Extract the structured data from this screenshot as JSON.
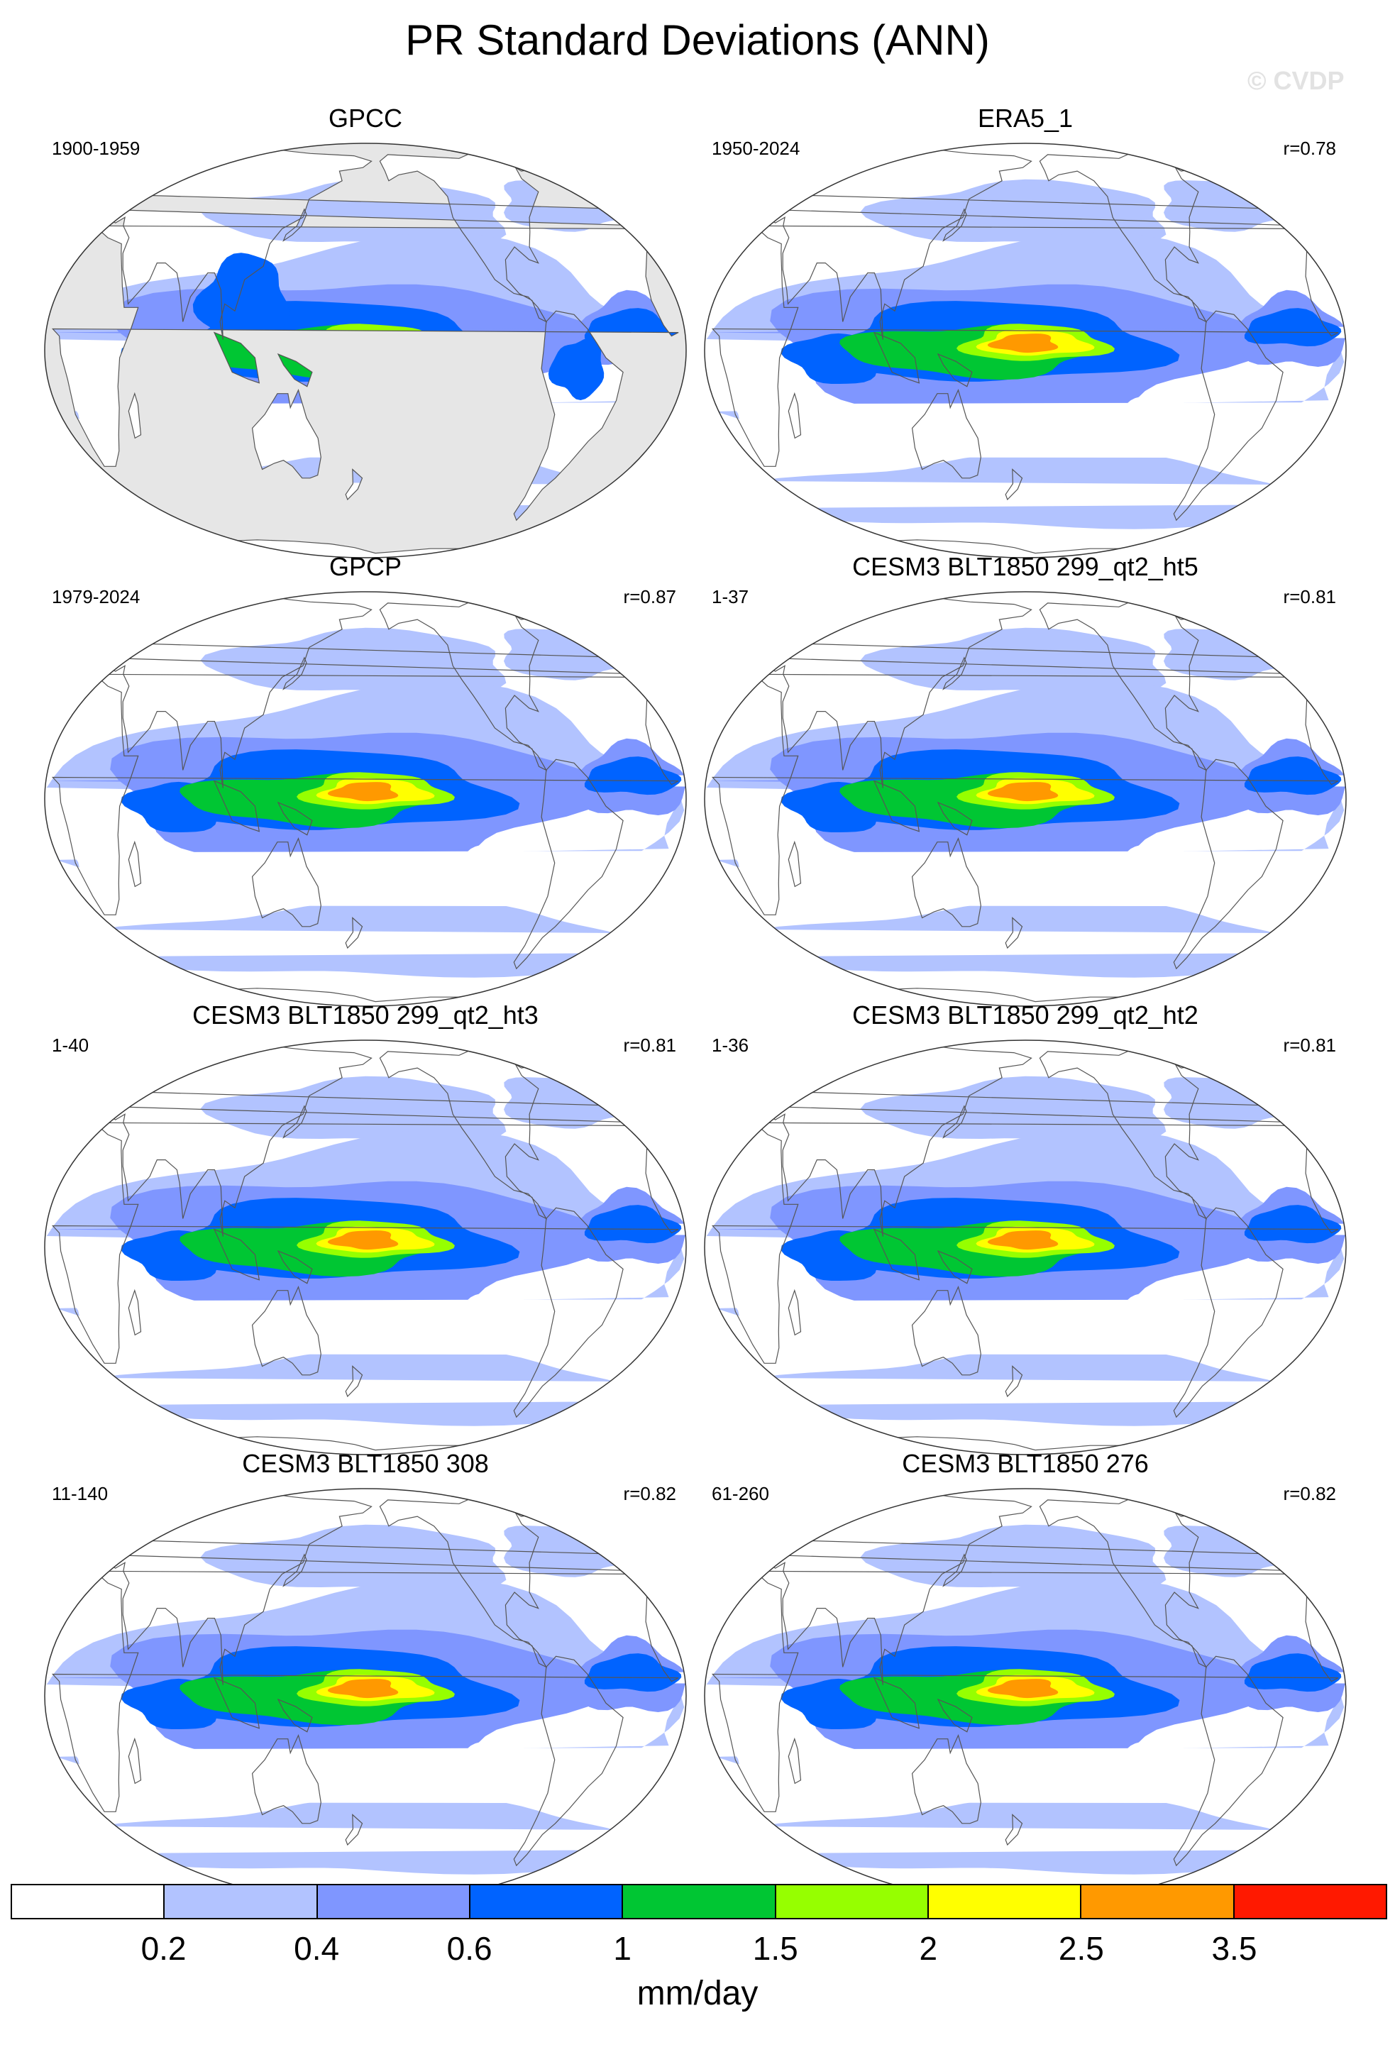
{
  "title": "PR Standard Deviations (ANN)",
  "watermark": "© CVDP",
  "panels": [
    {
      "title": "GPCC",
      "period": "1900-1959",
      "r": "",
      "obs_land_only": true,
      "peak": 1.6
    },
    {
      "title": "ERA5_1",
      "period": "1950-2024",
      "r": "r=0.78",
      "obs_land_only": false,
      "peak": 2.5
    },
    {
      "title": "GPCP",
      "period": "1979-2024",
      "r": "r=0.87",
      "obs_land_only": false,
      "peak": 2.5
    },
    {
      "title": "CESM3 BLT1850 299_qt2_ht5",
      "period": "1-37",
      "r": "r=0.81",
      "obs_land_only": false,
      "peak": 3.0
    },
    {
      "title": "CESM3 BLT1850 299_qt2_ht3",
      "period": "1-40",
      "r": "r=0.81",
      "obs_land_only": false,
      "peak": 3.0
    },
    {
      "title": "CESM3 BLT1850 299_qt2_ht2",
      "period": "1-36",
      "r": "r=0.81",
      "obs_land_only": false,
      "peak": 3.0
    },
    {
      "title": "CESM3 BLT1850 308",
      "period": "11-140",
      "r": "r=0.82",
      "obs_land_only": false,
      "peak": 3.0
    },
    {
      "title": "CESM3 BLT1850 276",
      "period": "61-260",
      "r": "r=0.82",
      "obs_land_only": false,
      "peak": 3.0
    }
  ],
  "colorbar": {
    "colors": [
      "#ffffff",
      "#b2c3ff",
      "#7f96ff",
      "#0063ff",
      "#00c633",
      "#96ff00",
      "#ffff00",
      "#ff9900",
      "#ff1900"
    ],
    "labels": [
      "0.2",
      "0.4",
      "0.6",
      "1",
      "1.5",
      "2",
      "2.5",
      "3.5"
    ],
    "levels": [
      0.2,
      0.4,
      0.6,
      1,
      1.5,
      2,
      2.5,
      3.5
    ],
    "units": "mm/day",
    "missing_color": "#e6e6e6"
  }
}
